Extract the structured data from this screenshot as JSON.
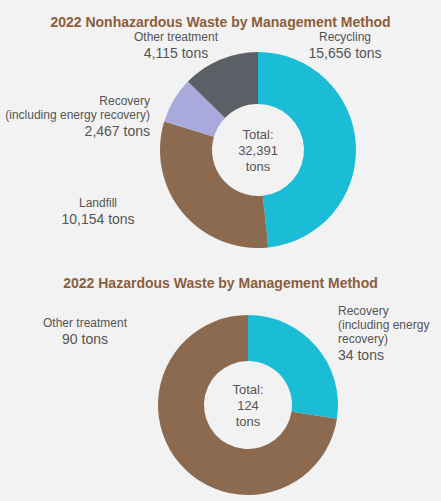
{
  "chart_data": [
    {
      "type": "pie",
      "title": "2022 Nonhazardous Waste by Management Method",
      "center_text": "Total:\n32,391\ntons",
      "categories": [
        "Recycling",
        "Landfill",
        "Recovery (including energy recovery)",
        "Other treatment"
      ],
      "values": [
        15656,
        10154,
        2467,
        4115
      ],
      "value_labels": [
        "15,656 tons",
        "10,154 tons",
        "2,467 tons",
        "4,115 tons"
      ],
      "colors": [
        "#1bbcd6",
        "#8c6a50",
        "#a9a9dc",
        "#5b6066"
      ],
      "data_labels": true
    },
    {
      "type": "pie",
      "title": "2022 Hazardous Waste by Management Method",
      "center_text": "Total:\n124\ntons",
      "categories": [
        "Recovery (including energy recovery)",
        "Other treatment"
      ],
      "values": [
        34,
        90
      ],
      "value_labels": [
        "34 tons",
        "90 tons"
      ],
      "colors": [
        "#1bbcd6",
        "#8c6a50"
      ],
      "data_labels": true
    }
  ]
}
